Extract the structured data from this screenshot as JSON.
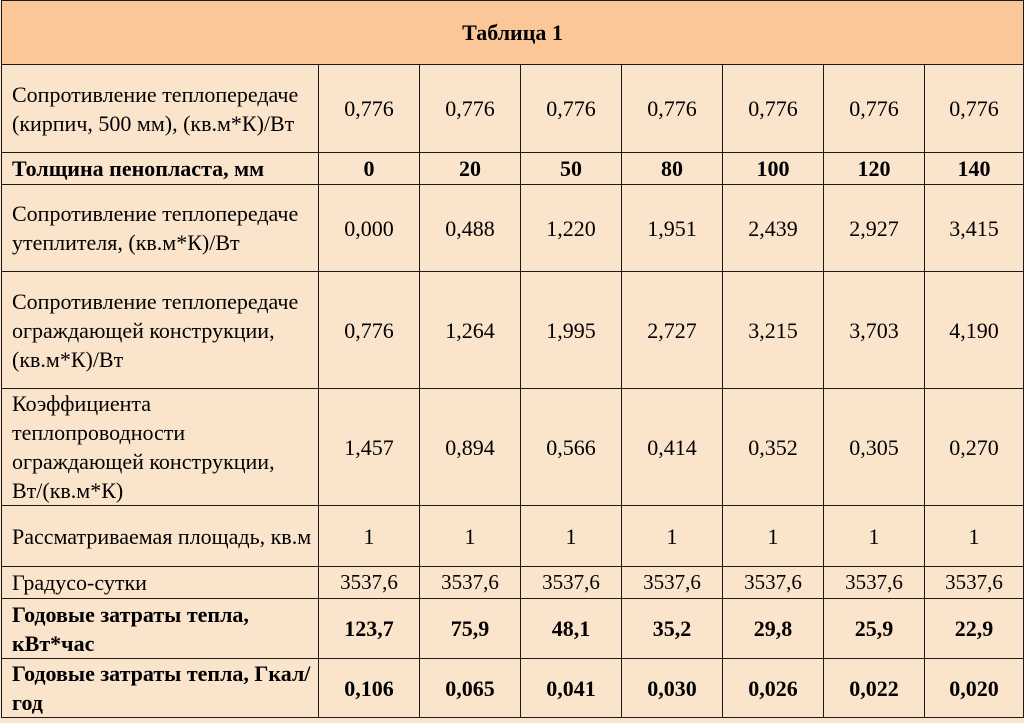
{
  "title": "Таблица 1",
  "rows": [
    {
      "label": "Сопротивление теплопередаче (кирпич, 500 мм), (кв.м*К)/Вт",
      "values": [
        "0,776",
        "0,776",
        "0,776",
        "0,776",
        "0,776",
        "0,776",
        "0,776"
      ]
    },
    {
      "label": "Толщина пенопласта, мм",
      "values": [
        "0",
        "20",
        "50",
        "80",
        "100",
        "120",
        "140"
      ]
    },
    {
      "label": "Сопротивление теплопередаче утеплителя, (кв.м*К)/Вт",
      "values": [
        "0,000",
        "0,488",
        "1,220",
        "1,951",
        "2,439",
        "2,927",
        "3,415"
      ]
    },
    {
      "label": "Сопротивление теплопередаче ограждающей конструкции, (кв.м*К)/Вт",
      "values": [
        "0,776",
        "1,264",
        "1,995",
        "2,727",
        "3,215",
        "3,703",
        "4,190"
      ]
    },
    {
      "label": "Коэффициента теплопроводности ограждающей конструкции, Вт/(кв.м*К)",
      "values": [
        "1,457",
        "0,894",
        "0,566",
        "0,414",
        "0,352",
        "0,305",
        "0,270"
      ]
    },
    {
      "label": "Рассматриваемая площадь, кв.м",
      "values": [
        "1",
        "1",
        "1",
        "1",
        "1",
        "1",
        "1"
      ]
    },
    {
      "label": "Градусо-сутки",
      "values": [
        "3537,6",
        "3537,6",
        "3537,6",
        "3537,6",
        "3537,6",
        "3537,6",
        "3537,6"
      ]
    },
    {
      "label": "Годовые затраты тепла, кВт*час",
      "values": [
        "123,7",
        "75,9",
        "48,1",
        "35,2",
        "29,8",
        "25,9",
        "22,9"
      ]
    },
    {
      "label": "Годовые затраты тепла, Гкал/год",
      "values": [
        "0,106",
        "0,065",
        "0,041",
        "0,030",
        "0,026",
        "0,022",
        "0,020"
      ]
    }
  ]
}
